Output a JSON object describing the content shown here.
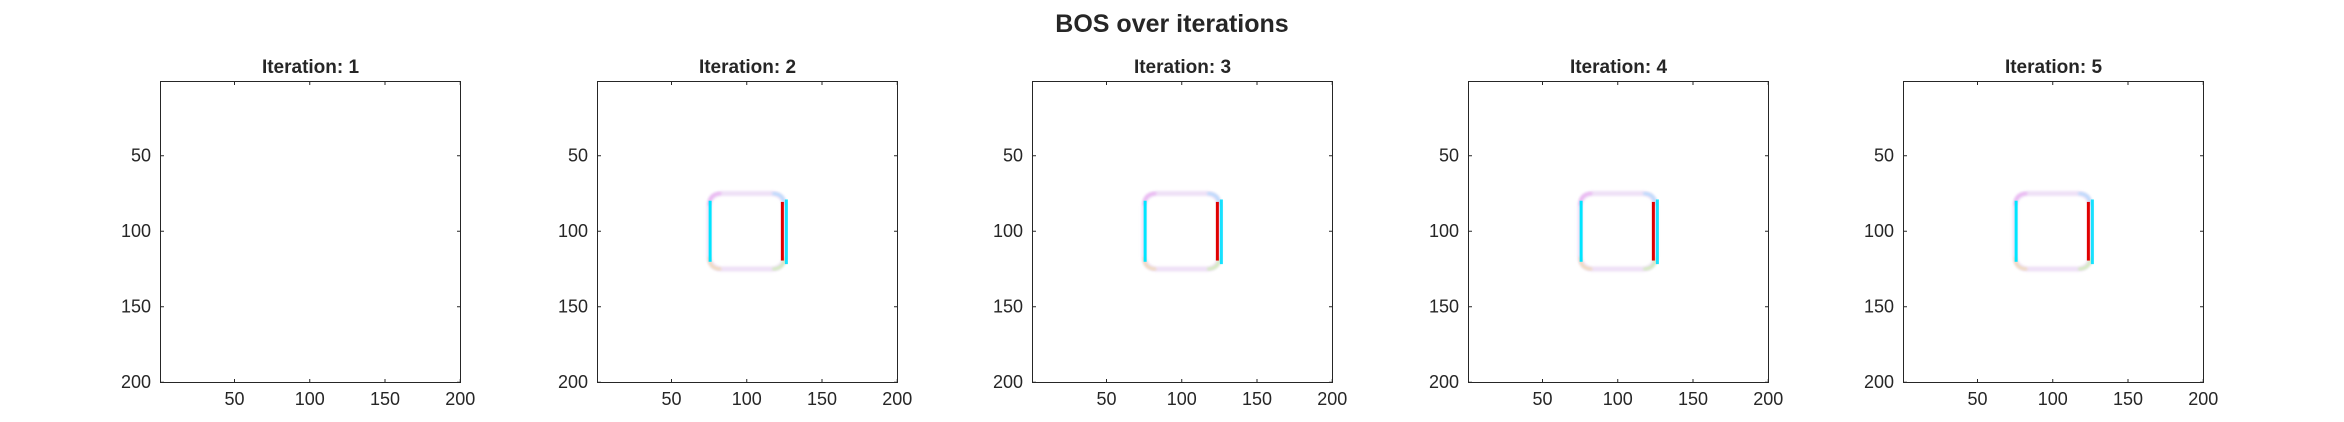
{
  "figure": {
    "title": "BOS over iterations"
  },
  "chart_data": [
    {
      "type": "heatmap",
      "title": "Iteration: 1",
      "xlim": [
        0.5,
        200.5
      ],
      "ylim": [
        0.5,
        200.5
      ],
      "y_reversed": true,
      "xticks": [
        50,
        100,
        150,
        200
      ],
      "yticks": [
        50,
        100,
        150,
        200
      ],
      "xlabel": "",
      "ylabel": "",
      "pattern": "blank"
    },
    {
      "type": "heatmap",
      "title": "Iteration: 2",
      "xlim": [
        0.5,
        200.5
      ],
      "ylim": [
        0.5,
        200.5
      ],
      "y_reversed": true,
      "xticks": [
        50,
        100,
        150,
        200
      ],
      "yticks": [
        50,
        100,
        150,
        200
      ],
      "xlabel": "",
      "ylabel": "",
      "pattern": "square_outline",
      "square": {
        "x_min": 75,
        "x_max": 125,
        "y_min": 75,
        "y_max": 125,
        "corner_radius": 8
      },
      "edge_colors": {
        "left": "#00e5ff",
        "right": "#e00000",
        "top": "#c8a0ff",
        "bottom": "#a0ffa0"
      }
    },
    {
      "type": "heatmap",
      "title": "Iteration: 3",
      "xlim": [
        0.5,
        200.5
      ],
      "ylim": [
        0.5,
        200.5
      ],
      "y_reversed": true,
      "xticks": [
        50,
        100,
        150,
        200
      ],
      "yticks": [
        50,
        100,
        150,
        200
      ],
      "xlabel": "",
      "ylabel": "",
      "pattern": "square_outline",
      "square": {
        "x_min": 75,
        "x_max": 125,
        "y_min": 75,
        "y_max": 125,
        "corner_radius": 8
      },
      "edge_colors": {
        "left": "#00e5ff",
        "right": "#e00000",
        "top": "#c8a0ff",
        "bottom": "#a0ffa0"
      }
    },
    {
      "type": "heatmap",
      "title": "Iteration: 4",
      "xlim": [
        0.5,
        200.5
      ],
      "ylim": [
        0.5,
        200.5
      ],
      "y_reversed": true,
      "xticks": [
        50,
        100,
        150,
        200
      ],
      "yticks": [
        50,
        100,
        150,
        200
      ],
      "xlabel": "",
      "ylabel": "",
      "pattern": "square_outline",
      "square": {
        "x_min": 75,
        "x_max": 125,
        "y_min": 75,
        "y_max": 125,
        "corner_radius": 8
      },
      "edge_colors": {
        "left": "#00e5ff",
        "right": "#e00000",
        "top": "#c8a0ff",
        "bottom": "#a0ffa0"
      }
    },
    {
      "type": "heatmap",
      "title": "Iteration: 5",
      "xlim": [
        0.5,
        200.5
      ],
      "ylim": [
        0.5,
        200.5
      ],
      "y_reversed": true,
      "xticks": [
        50,
        100,
        150,
        200
      ],
      "yticks": [
        50,
        100,
        150,
        200
      ],
      "xlabel": "",
      "ylabel": "",
      "pattern": "square_outline",
      "square": {
        "x_min": 75,
        "x_max": 125,
        "y_min": 75,
        "y_max": 125,
        "corner_radius": 8
      },
      "edge_colors": {
        "left": "#00e5ff",
        "right": "#e00000",
        "top": "#c8a0ff",
        "bottom": "#a0ffa0"
      }
    }
  ]
}
